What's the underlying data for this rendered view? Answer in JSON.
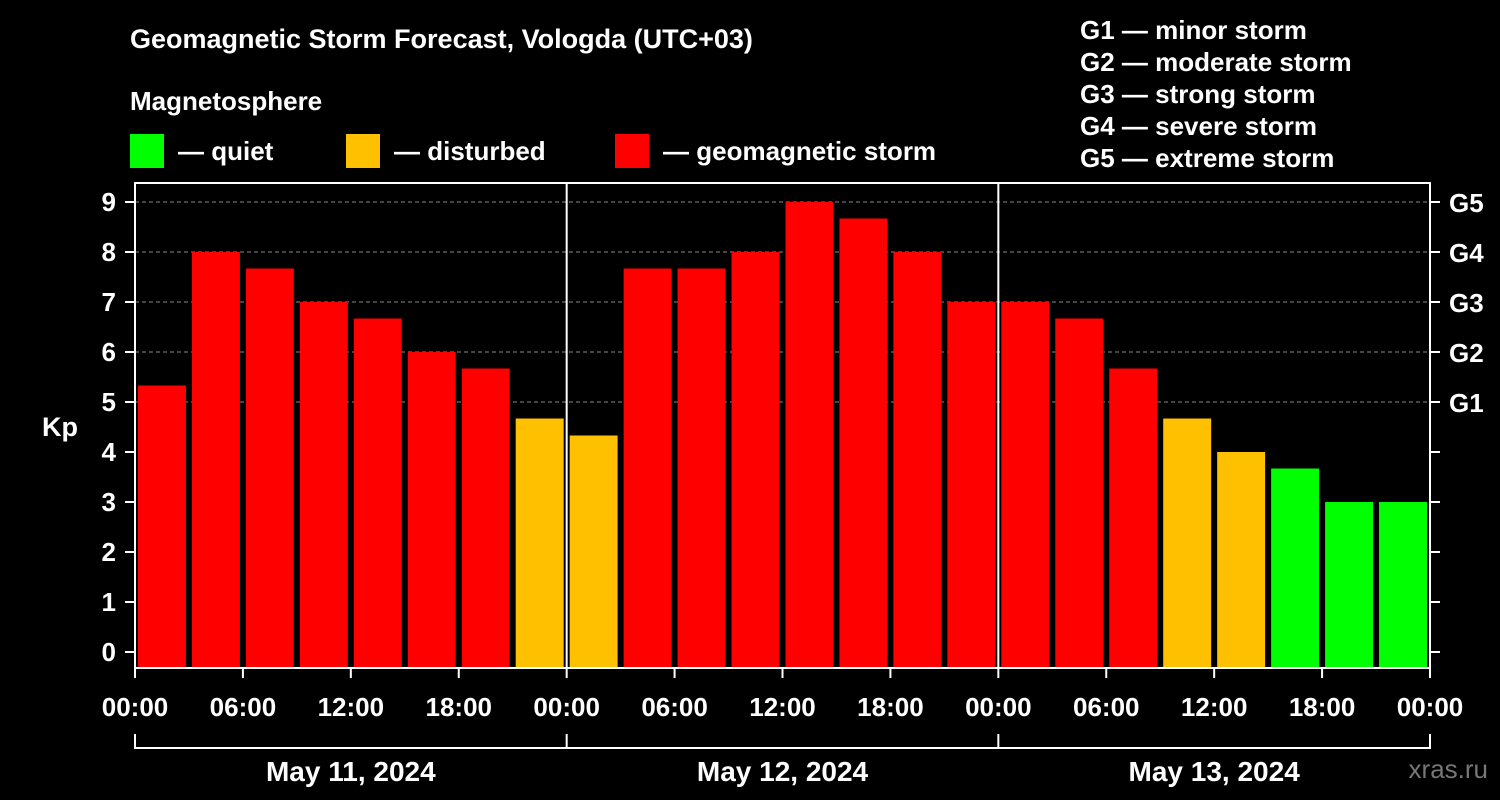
{
  "header": {
    "title": "Geomagnetic Storm Forecast, Vologda (UTC+03)",
    "magnetosphere_title": "Magnetosphere"
  },
  "legend": [
    {
      "label": "— quiet",
      "color": "#00ff00"
    },
    {
      "label": "— disturbed",
      "color": "#ffc000"
    },
    {
      "label": "— geomagnetic storm",
      "color": "#ff0000"
    }
  ],
  "gscale": [
    "G1 — minor storm",
    "G2 — moderate storm",
    "G3 — strong storm",
    "G4 — severe storm",
    "G5 — extreme storm"
  ],
  "watermark": "xras.ru",
  "chart_data": {
    "type": "bar",
    "ylabel": "Kp",
    "ylim": [
      0,
      9
    ],
    "y_ticks": [
      "0",
      "1",
      "2",
      "3",
      "4",
      "5",
      "6",
      "7",
      "8",
      "9"
    ],
    "right_ticks": [
      {
        "value": 5,
        "label": "G1"
      },
      {
        "value": 6,
        "label": "G2"
      },
      {
        "value": 7,
        "label": "G3"
      },
      {
        "value": 8,
        "label": "G4"
      },
      {
        "value": 9,
        "label": "G5"
      }
    ],
    "x_tick_labels": [
      "00:00",
      "06:00",
      "12:00",
      "18:00",
      "00:00",
      "06:00",
      "12:00",
      "18:00",
      "00:00",
      "06:00",
      "12:00",
      "18:00",
      "00:00"
    ],
    "days": [
      "May 11, 2024",
      "May 12, 2024",
      "May 13, 2024"
    ],
    "grid": "dashed horizontal at G levels",
    "values": [
      5.33,
      8.0,
      7.67,
      7.0,
      6.67,
      6.0,
      5.67,
      4.67,
      4.33,
      7.67,
      7.67,
      8.0,
      9.0,
      8.67,
      8.0,
      7.0,
      7.0,
      6.67,
      5.67,
      4.67,
      4.0,
      3.67,
      3.0,
      3.0
    ],
    "colors": {
      "quiet": "#00ff00",
      "disturbed": "#ffc000",
      "storm": "#ff0000"
    }
  }
}
